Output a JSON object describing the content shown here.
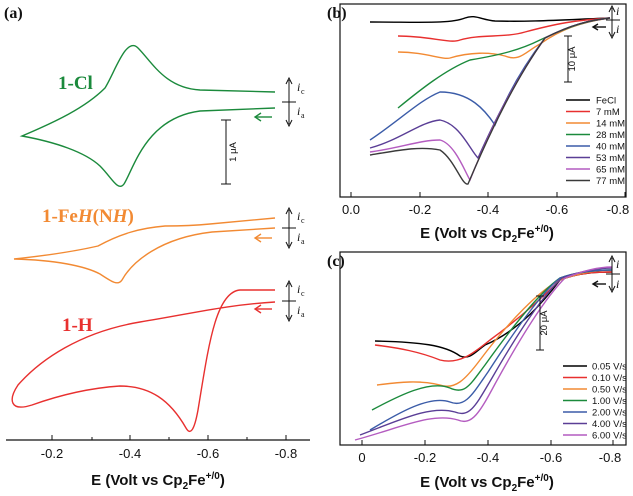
{
  "figure": {
    "panel_labels": [
      "(a)",
      "(b)",
      "(c)"
    ],
    "current_labels": {
      "cathodic": "i",
      "cathodic_sub": "c",
      "anodic": "i",
      "anodic_sub": "a"
    }
  },
  "panel_a": {
    "compounds": [
      {
        "label": "1-Cl",
        "color": "#1b8a3c"
      },
      {
        "label": "1-FeH(NH)",
        "color": "#f28a33"
      },
      {
        "label": "1-H",
        "color": "#e8302f"
      }
    ],
    "scale_bar": "1 μA",
    "x_ticks": [
      "-0.2",
      "-0.4",
      "-0.6",
      "-0.8"
    ],
    "x_axis_label": "E (Volt vs Cp",
    "x_axis_label_sub": "2",
    "x_axis_label_end": "Fe",
    "x_axis_label_sup": "+/0",
    "x_axis_label_close": ")"
  },
  "panel_b": {
    "scale_bar": "10 μA",
    "x_ticks": [
      "0.0",
      "-0.2",
      "-0.4",
      "-0.6",
      "-0.8"
    ],
    "legend": [
      {
        "label": "FeCl",
        "color": "#000000"
      },
      {
        "label": "7 mM",
        "color": "#e8302f"
      },
      {
        "label": "14 mM",
        "color": "#f28a33"
      },
      {
        "label": "28 mM",
        "color": "#1b8a3c"
      },
      {
        "label": "40 mM",
        "color": "#3b5ca8"
      },
      {
        "label": "53 mM",
        "color": "#5a3e96"
      },
      {
        "label": "65 mM",
        "color": "#b45cc0"
      },
      {
        "label": "77 mM",
        "color": "#3a3a3a"
      }
    ]
  },
  "panel_c": {
    "scale_bar": "20 μA",
    "x_ticks": [
      "0",
      "-0.2",
      "-0.4",
      "-0.6",
      "-0.8"
    ],
    "legend": [
      {
        "label": "0.05 V/s",
        "color": "#000000"
      },
      {
        "label": "0.10 V/s",
        "color": "#e8302f"
      },
      {
        "label": "0.50 V/s",
        "color": "#f28a33"
      },
      {
        "label": "1.00 V/s",
        "color": "#1b8a3c"
      },
      {
        "label": "2.00 V/s",
        "color": "#3b5ca8"
      },
      {
        "label": "4.00 V/s",
        "color": "#5a3e96"
      },
      {
        "label": "6.00 V/s",
        "color": "#b45cc0"
      }
    ]
  }
}
